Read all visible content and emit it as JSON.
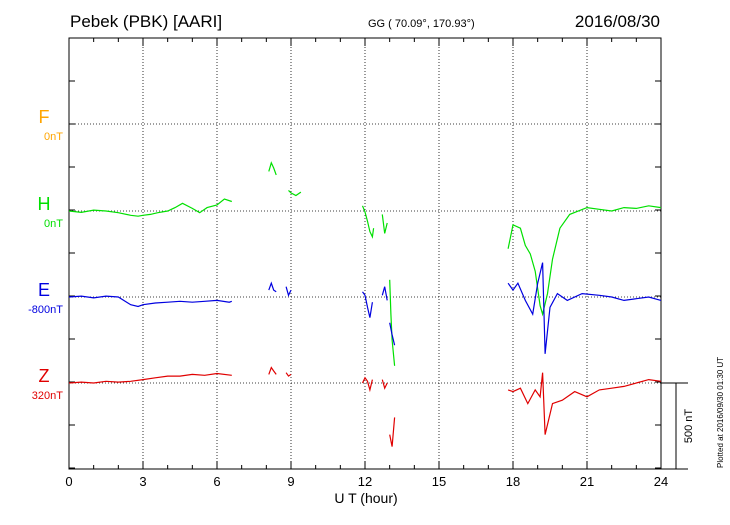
{
  "header": {
    "title": "Pebek (PBK)  [AARI]",
    "coords": "GG ( 70.09°, 170.93°)",
    "date": "2016/08/30"
  },
  "footer": {
    "plotted": "Plotted at 2016/09/30 01:30 UT"
  },
  "colors": {
    "F": "#ffa500",
    "H": "#00e000",
    "E": "#0000e0",
    "Z": "#e00000"
  },
  "chart_data": {
    "type": "line",
    "xlabel": "U T (hour)",
    "xlim": [
      0,
      24
    ],
    "xticks": [
      0,
      3,
      6,
      9,
      12,
      15,
      18,
      21,
      24
    ],
    "grid": true,
    "scale_bar": {
      "value": 500,
      "label": "500 nT"
    },
    "series": [
      {
        "name": "F",
        "baseline_label": "0nT",
        "x": [],
        "y": []
      },
      {
        "name": "H",
        "baseline_label": "0nT",
        "segments": [
          {
            "x": [
              0,
              0.5,
              1,
              1.5,
              2,
              2.5,
              2.8,
              3,
              3.3,
              3.6,
              4,
              4.3,
              4.6,
              5,
              5.3,
              5.6,
              6,
              6.3,
              6.6
            ],
            "y": [
              0,
              -8,
              5,
              0,
              -10,
              -25,
              -30,
              -25,
              -20,
              -10,
              0,
              20,
              45,
              15,
              -10,
              20,
              35,
              70,
              55
            ]
          },
          {
            "x": [
              8.1,
              8.2,
              8.3,
              8.4
            ],
            "y": [
              230,
              280,
              250,
              210
            ]
          },
          {
            "x": [
              8.9,
              9.0,
              9.2,
              9.4
            ],
            "y": [
              120,
              105,
              90,
              110
            ]
          },
          {
            "x": [
              11.9,
              12.0,
              12.1,
              12.2,
              12.3,
              12.35
            ],
            "y": [
              30,
              -5,
              -60,
              -120,
              -150,
              -100
            ]
          },
          {
            "x": [
              12.7,
              12.8,
              12.9
            ],
            "y": [
              -20,
              -130,
              -70
            ]
          },
          {
            "x": [
              13.0,
              13.05,
              13.1,
              13.2
            ],
            "y": [
              -400,
              -600,
              -750,
              -900
            ]
          },
          {
            "x": [
              17.8,
              18.0,
              18.3,
              18.5,
              18.7,
              18.9,
              19.1,
              19.2,
              19.4,
              19.6,
              19.9,
              20.3,
              21,
              21.5,
              22,
              22.5,
              23,
              23.5,
              24
            ],
            "y": [
              -220,
              -80,
              -100,
              -200,
              -250,
              -350,
              -550,
              -600,
              -480,
              -280,
              -100,
              -20,
              20,
              10,
              0,
              20,
              15,
              30,
              20
            ]
          }
        ]
      },
      {
        "name": "E",
        "baseline_label": "-800nT",
        "segments": [
          {
            "x": [
              0,
              0.5,
              1,
              1.5,
              2,
              2.5,
              2.8,
              3,
              3.5,
              4,
              4.5,
              5,
              5.5,
              6,
              6.5,
              6.6
            ],
            "y": [
              0,
              5,
              -5,
              5,
              0,
              -45,
              -55,
              -45,
              -35,
              -30,
              -25,
              -30,
              -25,
              -20,
              -30,
              -25
            ]
          },
          {
            "x": [
              8.1,
              8.2,
              8.3,
              8.4
            ],
            "y": [
              40,
              80,
              40,
              30
            ]
          },
          {
            "x": [
              8.8,
              8.9,
              9.0
            ],
            "y": [
              60,
              10,
              40
            ]
          },
          {
            "x": [
              11.9,
              12.0,
              12.1,
              12.2,
              12.3
            ],
            "y": [
              30,
              10,
              -60,
              -120,
              -30
            ]
          },
          {
            "x": [
              12.7,
              12.8,
              12.9
            ],
            "y": [
              10,
              60,
              -20
            ]
          },
          {
            "x": [
              13.0,
              13.1,
              13.2
            ],
            "y": [
              -150,
              -220,
              -280
            ]
          },
          {
            "x": [
              17.8,
              18.0,
              18.2,
              18.5,
              18.8,
              19.0,
              19.2,
              19.3,
              19.5,
              19.8,
              20.2,
              20.8,
              21.5,
              22,
              22.5,
              23,
              23.5,
              24
            ],
            "y": [
              80,
              40,
              80,
              -20,
              -100,
              80,
              200,
              -330,
              -60,
              20,
              -20,
              20,
              10,
              0,
              -20,
              -10,
              0,
              -20
            ]
          }
        ]
      },
      {
        "name": "Z",
        "baseline_label": "320nT",
        "segments": [
          {
            "x": [
              0,
              0.5,
              1,
              1.5,
              2,
              2.5,
              3,
              3.5,
              4,
              4.5,
              5,
              5.5,
              6,
              6.6
            ],
            "y": [
              0,
              5,
              0,
              10,
              5,
              10,
              20,
              30,
              40,
              40,
              50,
              45,
              55,
              45
            ]
          },
          {
            "x": [
              8.1,
              8.2,
              8.3,
              8.4
            ],
            "y": [
              50,
              90,
              70,
              50
            ]
          },
          {
            "x": [
              8.8,
              8.9,
              9.0
            ],
            "y": [
              60,
              40,
              50
            ]
          },
          {
            "x": [
              11.9,
              12.0,
              12.1,
              12.2,
              12.3
            ],
            "y": [
              0,
              30,
              10,
              -40,
              20
            ]
          },
          {
            "x": [
              12.7,
              12.8,
              12.9
            ],
            "y": [
              20,
              -30,
              0
            ]
          },
          {
            "x": [
              13.0,
              13.1,
              13.2
            ],
            "y": [
              -300,
              -370,
              -200
            ]
          },
          {
            "x": [
              17.8,
              18.0,
              18.3,
              18.6,
              18.9,
              19.1,
              19.2,
              19.3,
              19.6,
              20.0,
              20.5,
              21,
              21.5,
              22,
              22.5,
              23,
              23.5,
              24
            ],
            "y": [
              -40,
              -50,
              -30,
              -120,
              -40,
              -80,
              60,
              -300,
              -120,
              -100,
              -50,
              -80,
              -40,
              -30,
              -20,
              0,
              20,
              10
            ]
          }
        ]
      }
    ]
  }
}
